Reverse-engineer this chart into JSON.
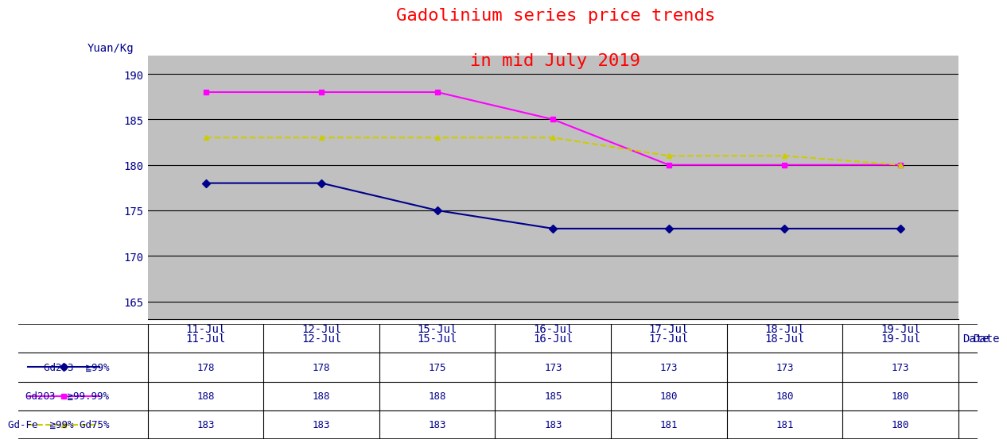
{
  "title_line1": "Gadolinium series price trends",
  "title_line2": "in mid July 2019",
  "title_color": "#FF0000",
  "ylabel": "Yuan/Kg",
  "xlabel": "Date",
  "plot_bg_color": "#C0C0C0",
  "fig_background": "#FFFFFF",
  "x_labels": [
    "11-Jul",
    "12-Jul",
    "15-Jul",
    "16-Jul",
    "17-Jul",
    "18-Jul",
    "19-Jul"
  ],
  "ylim": [
    163,
    192
  ],
  "yticks": [
    165,
    170,
    175,
    180,
    185,
    190
  ],
  "series": [
    {
      "label": "Gd2O3  ≧99%",
      "values": [
        178,
        178,
        175,
        173,
        173,
        173,
        173
      ],
      "color": "#00008B",
      "marker": "D",
      "linestyle": "-",
      "markersize": 5,
      "markerfacecolor": "#00008B"
    },
    {
      "label": "Gd2O3  ≧99.99%",
      "values": [
        188,
        188,
        188,
        185,
        180,
        180,
        180
      ],
      "color": "#FF00FF",
      "marker": "s",
      "linestyle": "-",
      "markersize": 5,
      "markerfacecolor": "#FF00FF"
    },
    {
      "label": "Gd-Fe  ≧99% Gd75%",
      "values": [
        183,
        183,
        183,
        183,
        181,
        181,
        180
      ],
      "color": "#CCCC00",
      "marker": "^",
      "linestyle": "--",
      "markersize": 5,
      "markerfacecolor": "#CCCC00"
    }
  ],
  "table_data": [
    [
      "",
      "11-Jul",
      "12-Jul",
      "15-Jul",
      "16-Jul",
      "17-Jul",
      "18-Jul",
      "19-Jul"
    ],
    [
      "Gd2O3  ≧99%",
      "178",
      "178",
      "175",
      "173",
      "173",
      "173",
      "173"
    ],
    [
      "Gd2O3  ≧99.99%",
      "188",
      "188",
      "188",
      "185",
      "180",
      "180",
      "180"
    ],
    [
      "Gd-Fe  ≧99% Gd75%",
      "183",
      "183",
      "183",
      "183",
      "181",
      "181",
      "180"
    ]
  ],
  "table_series_colors": [
    "#00008B",
    "#FF00FF",
    "#CCCC00"
  ],
  "table_series_markers": [
    "D",
    "s",
    "^"
  ],
  "table_series_linestyles": [
    "-",
    "-",
    "--"
  ],
  "text_color": "#00008B",
  "grid_color": "#000000",
  "font_size_title": 16,
  "font_size_axis": 10,
  "font_size_table": 9
}
